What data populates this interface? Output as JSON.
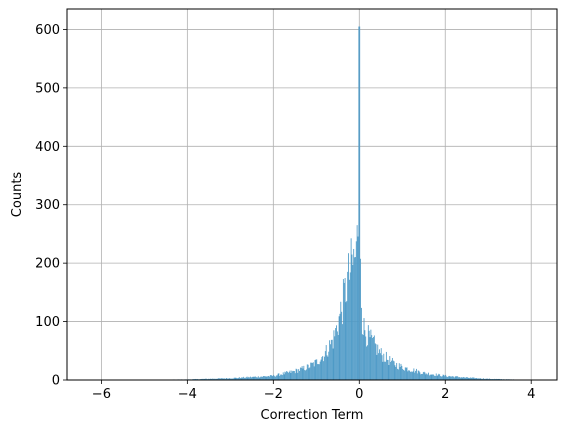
{
  "chart_data": {
    "type": "bar",
    "subtype": "histogram",
    "title": "",
    "xlabel": "Correction Term",
    "ylabel": "Counts",
    "xlim": [
      -6.8,
      4.6
    ],
    "ylim": [
      0,
      635
    ],
    "xticks": [
      -6,
      -4,
      -2,
      0,
      2,
      4
    ],
    "yticks": [
      0,
      100,
      200,
      300,
      400,
      500,
      600
    ],
    "xtick_labels": [
      "−6",
      "−4",
      "−2",
      "0",
      "2",
      "4"
    ],
    "ytick_labels": [
      "0",
      "100",
      "200",
      "300",
      "400",
      "500",
      "600"
    ],
    "grid": true,
    "bar_color": "#4e9ac7",
    "grid_color": "#b0b0b0",
    "data_range": [
      -6.2,
      4.3
    ],
    "bin_width": 0.02,
    "profile_points": [
      {
        "x": -6.2,
        "y": 0
      },
      {
        "x": -5.0,
        "y": 0.3
      },
      {
        "x": -4.0,
        "y": 1
      },
      {
        "x": -3.0,
        "y": 3
      },
      {
        "x": -2.5,
        "y": 5
      },
      {
        "x": -2.0,
        "y": 7
      },
      {
        "x": -1.5,
        "y": 15
      },
      {
        "x": -1.2,
        "y": 22
      },
      {
        "x": -1.0,
        "y": 30
      },
      {
        "x": -0.8,
        "y": 45
      },
      {
        "x": -0.6,
        "y": 70
      },
      {
        "x": -0.5,
        "y": 95
      },
      {
        "x": -0.4,
        "y": 125
      },
      {
        "x": -0.3,
        "y": 160
      },
      {
        "x": -0.2,
        "y": 190
      },
      {
        "x": -0.12,
        "y": 205
      },
      {
        "x": -0.06,
        "y": 215
      },
      {
        "x": -0.02,
        "y": 300
      },
      {
        "x": 0.0,
        "y": 605
      },
      {
        "x": 0.02,
        "y": 240
      },
      {
        "x": 0.06,
        "y": 110
      },
      {
        "x": 0.1,
        "y": 90
      },
      {
        "x": 0.2,
        "y": 75
      },
      {
        "x": 0.3,
        "y": 65
      },
      {
        "x": 0.5,
        "y": 45
      },
      {
        "x": 0.8,
        "y": 28
      },
      {
        "x": 1.0,
        "y": 22
      },
      {
        "x": 1.5,
        "y": 12
      },
      {
        "x": 2.0,
        "y": 7
      },
      {
        "x": 2.5,
        "y": 4
      },
      {
        "x": 3.0,
        "y": 2
      },
      {
        "x": 3.5,
        "y": 1
      },
      {
        "x": 4.3,
        "y": 0
      }
    ]
  }
}
